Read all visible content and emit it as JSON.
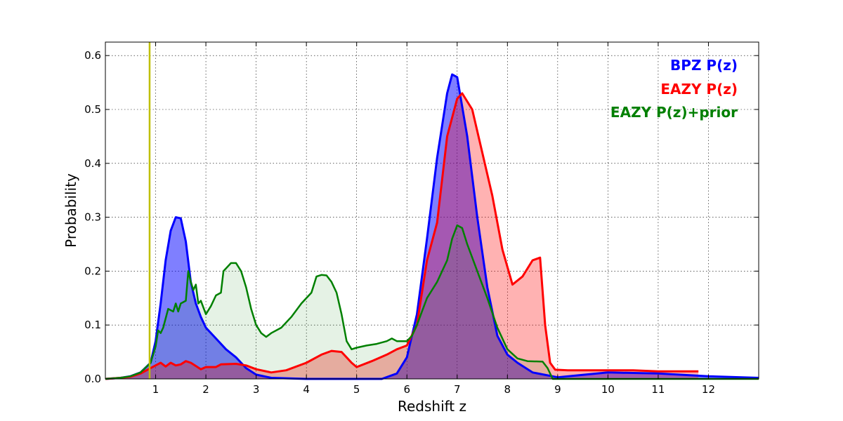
{
  "chart_data": {
    "type": "area",
    "title": "",
    "xlabel": "Redshift z",
    "ylabel": "Probability",
    "xlim": [
      0,
      13
    ],
    "ylim": [
      0,
      0.625
    ],
    "xticks": [
      1,
      2,
      3,
      4,
      5,
      6,
      7,
      8,
      9,
      10,
      11,
      12
    ],
    "xtick_labels": [
      "1",
      "2",
      "3",
      "4",
      "5",
      "6",
      "7",
      "8",
      "9",
      "10",
      "11",
      "12"
    ],
    "yticks": [
      0.0,
      0.1,
      0.2,
      0.3,
      0.4,
      0.5,
      0.6
    ],
    "ytick_labels": [
      "0.0",
      "0.1",
      "0.2",
      "0.3",
      "0.4",
      "0.5",
      "0.6"
    ],
    "grid": true,
    "legend_position": "top-right",
    "vertical_line": {
      "x": 0.88,
      "color": "#bfbf00"
    },
    "series": [
      {
        "name": "BPZ P(z)",
        "color": "#0000ff",
        "fill": "#0000ff",
        "fill_opacity": 0.5,
        "stroke_width": 3,
        "points": [
          [
            0,
            0
          ],
          [
            0.3,
            0.002
          ],
          [
            0.5,
            0.005
          ],
          [
            0.7,
            0.012
          ],
          [
            0.9,
            0.03
          ],
          [
            1.0,
            0.07
          ],
          [
            1.1,
            0.14
          ],
          [
            1.2,
            0.22
          ],
          [
            1.3,
            0.275
          ],
          [
            1.4,
            0.3
          ],
          [
            1.5,
            0.298
          ],
          [
            1.6,
            0.255
          ],
          [
            1.7,
            0.18
          ],
          [
            1.8,
            0.14
          ],
          [
            1.9,
            0.115
          ],
          [
            2.0,
            0.095
          ],
          [
            2.2,
            0.075
          ],
          [
            2.4,
            0.055
          ],
          [
            2.6,
            0.04
          ],
          [
            2.8,
            0.02
          ],
          [
            3.0,
            0.008
          ],
          [
            3.3,
            0.002
          ],
          [
            4.0,
            0.0
          ],
          [
            5.5,
            0.0
          ],
          [
            5.8,
            0.01
          ],
          [
            6.0,
            0.04
          ],
          [
            6.2,
            0.12
          ],
          [
            6.4,
            0.26
          ],
          [
            6.6,
            0.41
          ],
          [
            6.8,
            0.53
          ],
          [
            6.9,
            0.565
          ],
          [
            7.0,
            0.56
          ],
          [
            7.2,
            0.45
          ],
          [
            7.4,
            0.3
          ],
          [
            7.6,
            0.17
          ],
          [
            7.8,
            0.08
          ],
          [
            8.0,
            0.045
          ],
          [
            8.2,
            0.03
          ],
          [
            8.5,
            0.012
          ],
          [
            9.0,
            0.003
          ],
          [
            10.0,
            0.012
          ],
          [
            11.0,
            0.01
          ],
          [
            12.0,
            0.005
          ],
          [
            13.0,
            0.002
          ]
        ]
      },
      {
        "name": "EAZY P(z)",
        "color": "#ff0000",
        "fill": "#ff0000",
        "fill_opacity": 0.3,
        "stroke_width": 3,
        "points": [
          [
            0,
            0
          ],
          [
            0.3,
            0.002
          ],
          [
            0.5,
            0.004
          ],
          [
            0.7,
            0.01
          ],
          [
            0.9,
            0.02
          ],
          [
            1.0,
            0.025
          ],
          [
            1.1,
            0.03
          ],
          [
            1.2,
            0.023
          ],
          [
            1.3,
            0.03
          ],
          [
            1.4,
            0.025
          ],
          [
            1.5,
            0.027
          ],
          [
            1.6,
            0.033
          ],
          [
            1.7,
            0.03
          ],
          [
            1.8,
            0.024
          ],
          [
            1.9,
            0.018
          ],
          [
            2.0,
            0.022
          ],
          [
            2.2,
            0.022
          ],
          [
            2.3,
            0.027
          ],
          [
            2.6,
            0.028
          ],
          [
            2.8,
            0.025
          ],
          [
            3.0,
            0.018
          ],
          [
            3.3,
            0.012
          ],
          [
            3.6,
            0.016
          ],
          [
            4.0,
            0.03
          ],
          [
            4.3,
            0.045
          ],
          [
            4.5,
            0.052
          ],
          [
            4.7,
            0.05
          ],
          [
            4.9,
            0.03
          ],
          [
            5.0,
            0.022
          ],
          [
            5.3,
            0.033
          ],
          [
            5.6,
            0.045
          ],
          [
            5.8,
            0.055
          ],
          [
            6.0,
            0.062
          ],
          [
            6.2,
            0.1
          ],
          [
            6.4,
            0.22
          ],
          [
            6.6,
            0.29
          ],
          [
            6.8,
            0.45
          ],
          [
            7.0,
            0.52
          ],
          [
            7.1,
            0.53
          ],
          [
            7.3,
            0.5
          ],
          [
            7.5,
            0.42
          ],
          [
            7.7,
            0.34
          ],
          [
            7.9,
            0.24
          ],
          [
            8.1,
            0.175
          ],
          [
            8.3,
            0.19
          ],
          [
            8.5,
            0.22
          ],
          [
            8.65,
            0.225
          ],
          [
            8.75,
            0.1
          ],
          [
            8.85,
            0.03
          ],
          [
            8.95,
            0.017
          ],
          [
            9.2,
            0.016
          ],
          [
            10.0,
            0.016
          ],
          [
            10.5,
            0.016
          ],
          [
            11.0,
            0.014
          ],
          [
            11.8,
            0.014
          ]
        ]
      },
      {
        "name": "EAZY P(z)+prior",
        "color": "#008000",
        "fill": "#008000",
        "fill_opacity": 0.1,
        "stroke_width": 2.5,
        "points": [
          [
            0,
            0
          ],
          [
            0.3,
            0.002
          ],
          [
            0.5,
            0.005
          ],
          [
            0.7,
            0.012
          ],
          [
            0.9,
            0.03
          ],
          [
            1.0,
            0.06
          ],
          [
            1.05,
            0.09
          ],
          [
            1.1,
            0.085
          ],
          [
            1.15,
            0.095
          ],
          [
            1.25,
            0.13
          ],
          [
            1.35,
            0.125
          ],
          [
            1.4,
            0.14
          ],
          [
            1.45,
            0.125
          ],
          [
            1.5,
            0.14
          ],
          [
            1.6,
            0.145
          ],
          [
            1.65,
            0.2
          ],
          [
            1.7,
            0.18
          ],
          [
            1.75,
            0.165
          ],
          [
            1.8,
            0.175
          ],
          [
            1.85,
            0.14
          ],
          [
            1.9,
            0.145
          ],
          [
            2.0,
            0.12
          ],
          [
            2.1,
            0.135
          ],
          [
            2.2,
            0.155
          ],
          [
            2.3,
            0.16
          ],
          [
            2.35,
            0.2
          ],
          [
            2.5,
            0.215
          ],
          [
            2.6,
            0.215
          ],
          [
            2.7,
            0.2
          ],
          [
            2.8,
            0.17
          ],
          [
            2.9,
            0.13
          ],
          [
            3.0,
            0.1
          ],
          [
            3.1,
            0.085
          ],
          [
            3.2,
            0.078
          ],
          [
            3.3,
            0.085
          ],
          [
            3.5,
            0.095
          ],
          [
            3.7,
            0.115
          ],
          [
            3.9,
            0.14
          ],
          [
            4.1,
            0.16
          ],
          [
            4.2,
            0.19
          ],
          [
            4.3,
            0.193
          ],
          [
            4.4,
            0.192
          ],
          [
            4.5,
            0.18
          ],
          [
            4.6,
            0.16
          ],
          [
            4.7,
            0.12
          ],
          [
            4.8,
            0.07
          ],
          [
            4.9,
            0.055
          ],
          [
            5.0,
            0.058
          ],
          [
            5.2,
            0.062
          ],
          [
            5.4,
            0.065
          ],
          [
            5.6,
            0.07
          ],
          [
            5.7,
            0.075
          ],
          [
            5.8,
            0.07
          ],
          [
            6.0,
            0.07
          ],
          [
            6.1,
            0.08
          ],
          [
            6.2,
            0.1
          ],
          [
            6.4,
            0.15
          ],
          [
            6.6,
            0.18
          ],
          [
            6.8,
            0.22
          ],
          [
            6.9,
            0.26
          ],
          [
            7.0,
            0.285
          ],
          [
            7.1,
            0.28
          ],
          [
            7.2,
            0.25
          ],
          [
            7.4,
            0.2
          ],
          [
            7.6,
            0.15
          ],
          [
            7.8,
            0.095
          ],
          [
            8.0,
            0.055
          ],
          [
            8.2,
            0.038
          ],
          [
            8.4,
            0.033
          ],
          [
            8.7,
            0.032
          ],
          [
            8.8,
            0.02
          ],
          [
            8.9,
            0.0
          ],
          [
            13.0,
            0.0
          ]
        ]
      }
    ]
  },
  "legend": {
    "items": [
      {
        "label": "BPZ P(z)",
        "color": "#0000ff"
      },
      {
        "label": "EAZY P(z)",
        "color": "#ff0000"
      },
      {
        "label": "EAZY P(z)+prior",
        "color": "#008000"
      }
    ]
  }
}
